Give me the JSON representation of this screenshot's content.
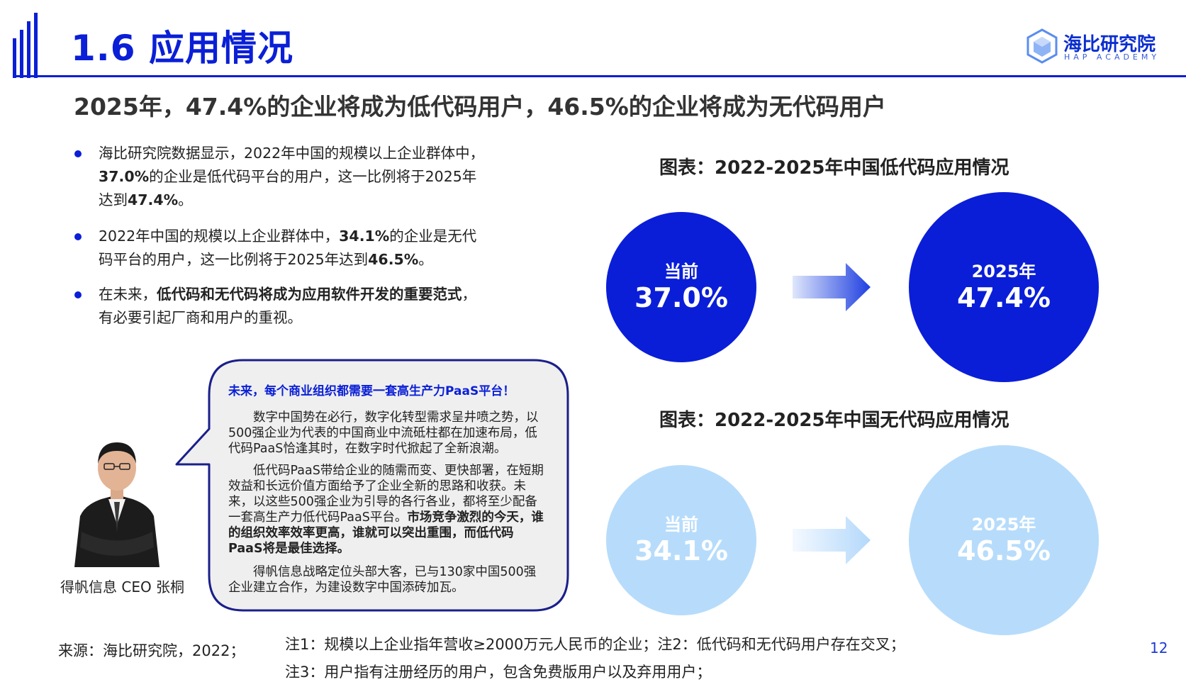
{
  "header": {
    "title": "1.6 应用情况",
    "logo_name": "海比研究院",
    "logo_sub": "HAP ACADEMY"
  },
  "headline": "2025年，47.4%的企业将成为低代码用户，46.5%的企业将成为无代码用户",
  "bullets": [
    {
      "pre": "海比研究院数据显示，2022年中国的规模以上企业群体中，",
      "bold": "37.0%",
      "mid": "的企业是低代码平台的用户，这一比例将于2025年达到",
      "bold2": "47.4%",
      "post": "。"
    },
    {
      "pre": "2022年中国的规模以上企业群体中，",
      "bold": "34.1%",
      "mid": "的企业是无代码平台的用户，这一比例将于2025年达到",
      "bold2": "46.5%",
      "post": "。"
    },
    {
      "pre": "在未来，",
      "bold": "低代码和无代码将成为应用软件开发的重要范式",
      "post": "，有必要引起厂商和用户的重视。"
    }
  ],
  "person": {
    "caption": "得帆信息  CEO  张桐"
  },
  "quote": {
    "title": "未来，每个商业组织都需要一套高生产力PaaS平台！",
    "p1": "数字中国势在必行，数字化转型需求呈井喷之势，以500强企业为代表的中国商业中流砥柱都在加速布局，低代码PaaS恰逢其时，在数字时代掀起了全新浪潮。",
    "p2_normal": "低代码PaaS带给企业的随需而变、更快部署，在短期效益和长远价值方面给予了企业全新的思路和收获。未来，以这些500强企业为引导的各行各业，都将至少配备一套高生产力低代码PaaS平台。",
    "p2_bold": "市场竞争激烈的今天，谁的组织效率效率更高，谁就可以突出重围，而低代码PaaS将是最佳选择。",
    "p3": "得帆信息战略定位头部大客，已与130家中国500强企业建立合作，为建设数字中国添砖加瓦。"
  },
  "charts": {
    "lowcode": {
      "title": "图表：2022-2025年中国低代码应用情况",
      "current_label": "当前",
      "current_value": "37.0%",
      "future_label": "2025年",
      "future_value": "47.4%",
      "color": "#0a1ed8"
    },
    "nocode": {
      "title": "图表：2022-2025年中国无代码应用情况",
      "current_label": "当前",
      "current_value": "34.1%",
      "future_label": "2025年",
      "future_value": "46.5%",
      "color": "#b7dcfb"
    }
  },
  "chart_data": [
    {
      "type": "bar",
      "title": "图表：2022-2025年中国低代码应用情况",
      "categories": [
        "当前",
        "2025年"
      ],
      "values": [
        37.0,
        47.4
      ]
    },
    {
      "type": "bar",
      "title": "图表：2022-2025年中国无代码应用情况",
      "categories": [
        "当前",
        "2025年"
      ],
      "values": [
        34.1,
        46.5
      ]
    }
  ],
  "footer": {
    "source": "来源：海比研究院，2022；",
    "note1": "注1：规模以上企业指年营收≥2000万元人民币的企业；注2：低代码和无代码用户存在交叉；",
    "note2": "注3：用户指有注册经历的用户，包含免费版用户以及弃用用户；",
    "page": "12"
  }
}
